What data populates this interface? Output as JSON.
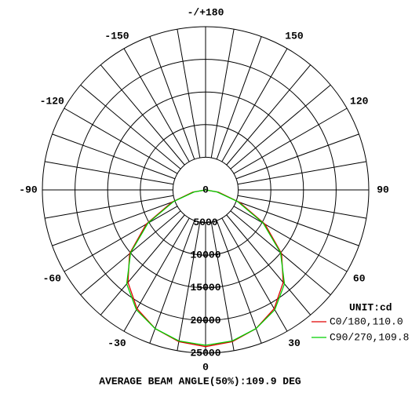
{
  "chart_data": {
    "type": "polar",
    "x": [
      -90,
      -80,
      -70,
      -60,
      -50,
      -40,
      -30,
      -20,
      -10,
      0,
      10,
      20,
      30,
      40,
      50,
      60,
      70,
      80,
      90
    ],
    "series": [
      {
        "name": "C0/180,110.0",
        "color": "#e00000",
        "values": [
          0,
          2000,
          5500,
          10500,
          15200,
          18500,
          21000,
          22600,
          23600,
          24000,
          23600,
          22600,
          21000,
          18500,
          15200,
          10500,
          5500,
          2000,
          0
        ]
      },
      {
        "name": "C90/270,109.8",
        "color": "#00d000",
        "values": [
          0,
          1800,
          5200,
          10200,
          15000,
          18800,
          21200,
          22600,
          23500,
          23800,
          23500,
          22600,
          21200,
          18800,
          15000,
          10200,
          5200,
          1800,
          0
        ]
      }
    ],
    "rlim": [
      0,
      25000
    ],
    "rticks": [
      0,
      5000,
      10000,
      15000,
      20000,
      25000
    ],
    "angle_ticks": [
      0,
      30,
      60,
      90,
      120,
      150,
      {
        "value": 180,
        "label": "-/+180"
      },
      -150,
      -120,
      -90,
      -60,
      -30
    ],
    "legend_title": "UNIT:cd",
    "annotation": "AVERAGE BEAM ANGLE(50%):109.9 DEG"
  }
}
